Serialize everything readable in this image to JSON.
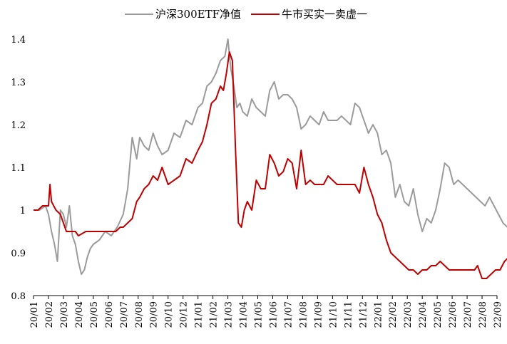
{
  "chart_data": {
    "type": "line",
    "title": "",
    "xlabel": "",
    "ylabel": "",
    "ylim": [
      0.8,
      1.4
    ],
    "yticks": [
      "1.4",
      "1.3",
      "1.2",
      "1.1",
      "1",
      "0.9",
      "0.8"
    ],
    "x_tick_labels": [
      "20/01",
      "20/02",
      "20/03",
      "20/04",
      "20/05",
      "20/06",
      "20/07",
      "20/08",
      "20/09",
      "20/10",
      "20/12",
      "21/01",
      "21/02",
      "21/03",
      "21/04",
      "21/05",
      "21/06",
      "21/07",
      "21/08",
      "21/09",
      "21/10",
      "21/11",
      "21/12",
      "22/01",
      "22/02",
      "22/03",
      "22/04",
      "22/05",
      "22/06",
      "22/07",
      "22/08",
      "22/09"
    ],
    "grid": false,
    "legend_position": "top",
    "series": [
      {
        "name": "沪深300ETF净值",
        "color": "#9b9b9b",
        "x": [
          0.0,
          0.4,
          0.8,
          1.0,
          1.2,
          1.4,
          1.6,
          1.8,
          2.0,
          2.2,
          2.4,
          2.6,
          2.8,
          3.0,
          3.2,
          3.4,
          3.6,
          3.8,
          4.0,
          4.4,
          4.8,
          5.2,
          5.6,
          6.0,
          6.3,
          6.6,
          6.9,
          7.1,
          7.4,
          7.7,
          8.0,
          8.3,
          8.6,
          9.0,
          9.4,
          9.8,
          10.2,
          10.6,
          11.0,
          11.3,
          11.6,
          11.9,
          12.2,
          12.5,
          12.8,
          13.0,
          13.2,
          13.4,
          13.6,
          13.8,
          14.0,
          14.3,
          14.6,
          14.9,
          15.2,
          15.5,
          15.8,
          16.1,
          16.4,
          16.7,
          17.0,
          17.3,
          17.6,
          17.9,
          18.2,
          18.5,
          18.8,
          19.1,
          19.4,
          19.7,
          20.0,
          20.3,
          20.6,
          20.9,
          21.2,
          21.5,
          21.8,
          22.1,
          22.4,
          22.7,
          23.0,
          23.3,
          23.6,
          23.9,
          24.2,
          24.5,
          24.8,
          25.1,
          25.4,
          25.7,
          26.0,
          26.3,
          26.6,
          26.9,
          27.2,
          27.5,
          27.8,
          28.1,
          28.4,
          28.7,
          29.0,
          29.3,
          29.6,
          29.9,
          30.2,
          30.5,
          30.8,
          31.1,
          31.4,
          31.7,
          32.0
        ],
        "values": [
          1.0,
          1.0,
          1.01,
          0.99,
          0.95,
          0.92,
          0.88,
          1.0,
          0.99,
          0.96,
          1.01,
          0.94,
          0.92,
          0.88,
          0.85,
          0.86,
          0.89,
          0.91,
          0.92,
          0.93,
          0.95,
          0.94,
          0.96,
          0.99,
          1.05,
          1.17,
          1.12,
          1.17,
          1.15,
          1.14,
          1.18,
          1.15,
          1.13,
          1.14,
          1.18,
          1.17,
          1.21,
          1.2,
          1.24,
          1.25,
          1.29,
          1.3,
          1.32,
          1.35,
          1.36,
          1.4,
          1.33,
          1.29,
          1.24,
          1.25,
          1.23,
          1.22,
          1.26,
          1.24,
          1.23,
          1.22,
          1.28,
          1.3,
          1.26,
          1.27,
          1.27,
          1.26,
          1.24,
          1.19,
          1.2,
          1.22,
          1.21,
          1.2,
          1.23,
          1.21,
          1.21,
          1.21,
          1.22,
          1.21,
          1.2,
          1.25,
          1.24,
          1.21,
          1.18,
          1.2,
          1.18,
          1.13,
          1.14,
          1.11,
          1.03,
          1.06,
          1.02,
          1.01,
          1.05,
          0.99,
          0.95,
          0.98,
          0.97,
          1.0,
          1.05,
          1.11,
          1.1,
          1.06,
          1.07,
          1.06,
          1.05,
          1.04,
          1.03,
          1.02,
          1.01,
          1.03,
          1.01,
          0.99,
          0.97,
          0.96,
          0.96
        ]
      },
      {
        "name": "牛市买实一卖虚一",
        "color": "#c00000",
        "x": [
          0.0,
          0.3,
          0.6,
          0.9,
          1.0,
          1.1,
          1.2,
          1.35,
          1.5,
          1.8,
          2.0,
          2.2,
          2.5,
          2.8,
          3.0,
          3.5,
          4.0,
          4.5,
          5.0,
          5.5,
          5.8,
          6.0,
          6.3,
          6.6,
          6.9,
          7.1,
          7.4,
          7.7,
          8.0,
          8.3,
          8.6,
          9.0,
          9.4,
          9.8,
          10.2,
          10.6,
          11.0,
          11.3,
          11.6,
          11.9,
          12.2,
          12.5,
          12.7,
          12.9,
          13.1,
          13.3,
          13.5,
          13.7,
          13.9,
          14.1,
          14.3,
          14.6,
          14.9,
          15.2,
          15.5,
          15.8,
          16.1,
          16.4,
          16.7,
          17.0,
          17.3,
          17.6,
          17.9,
          18.2,
          18.5,
          18.8,
          19.1,
          19.4,
          19.7,
          20.0,
          20.3,
          20.6,
          20.9,
          21.2,
          21.5,
          21.8,
          22.1,
          22.4,
          22.7,
          23.0,
          23.3,
          23.6,
          23.9,
          24.2,
          24.5,
          24.8,
          25.1,
          25.4,
          25.7,
          26.0,
          26.3,
          26.6,
          26.9,
          27.2,
          27.5,
          27.8,
          28.1,
          28.4,
          28.7,
          29.0,
          29.3,
          29.5,
          29.7,
          30.0,
          30.3,
          30.6,
          30.9,
          31.2,
          31.5,
          31.8,
          32.0
        ],
        "values": [
          1.0,
          1.0,
          1.01,
          1.01,
          1.01,
          1.06,
          1.02,
          1.01,
          1.0,
          0.99,
          0.97,
          0.95,
          0.95,
          0.95,
          0.94,
          0.95,
          0.95,
          0.95,
          0.95,
          0.95,
          0.96,
          0.96,
          0.97,
          0.98,
          1.02,
          1.03,
          1.05,
          1.06,
          1.08,
          1.07,
          1.1,
          1.06,
          1.07,
          1.08,
          1.12,
          1.11,
          1.14,
          1.16,
          1.2,
          1.25,
          1.26,
          1.29,
          1.28,
          1.32,
          1.37,
          1.35,
          1.15,
          0.97,
          0.96,
          1.0,
          1.02,
          1.0,
          1.07,
          1.05,
          1.05,
          1.13,
          1.11,
          1.08,
          1.09,
          1.12,
          1.11,
          1.05,
          1.14,
          1.06,
          1.07,
          1.06,
          1.06,
          1.06,
          1.08,
          1.07,
          1.06,
          1.06,
          1.06,
          1.06,
          1.06,
          1.04,
          1.1,
          1.06,
          1.03,
          0.99,
          0.97,
          0.93,
          0.9,
          0.89,
          0.88,
          0.87,
          0.86,
          0.86,
          0.85,
          0.86,
          0.86,
          0.87,
          0.87,
          0.88,
          0.87,
          0.86,
          0.86,
          0.86,
          0.86,
          0.86,
          0.86,
          0.86,
          0.87,
          0.84,
          0.84,
          0.85,
          0.86,
          0.86,
          0.88,
          0.89,
          0.92
        ]
      }
    ]
  }
}
